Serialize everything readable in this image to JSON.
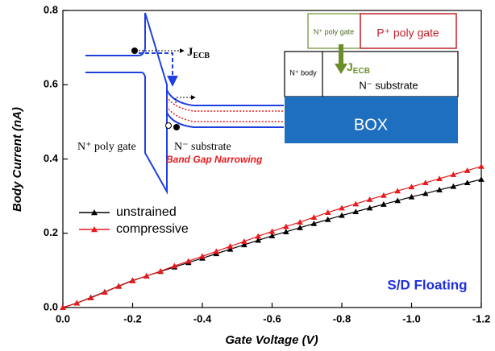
{
  "chart_data": {
    "type": "line",
    "x_label": "Gate Voltage (V)",
    "y_label": "Body Current (nA)",
    "x": [
      0,
      -0.04,
      -0.08,
      -0.12,
      -0.16,
      -0.2,
      -0.24,
      -0.28,
      -0.32,
      -0.36,
      -0.4,
      -0.44,
      -0.48,
      -0.52,
      -0.56,
      -0.6,
      -0.64,
      -0.68,
      -0.72,
      -0.76,
      -0.8,
      -0.84,
      -0.88,
      -0.92,
      -0.96,
      -1.0,
      -1.04,
      -1.08,
      -1.12,
      -1.16,
      -1.2
    ],
    "series": [
      {
        "name": "unstrained",
        "color": "#000000",
        "values": [
          0,
          0.012,
          0.027,
          0.042,
          0.058,
          0.073,
          0.085,
          0.097,
          0.109,
          0.121,
          0.133,
          0.145,
          0.157,
          0.169,
          0.181,
          0.193,
          0.204,
          0.215,
          0.226,
          0.237,
          0.248,
          0.258,
          0.268,
          0.278,
          0.288,
          0.298,
          0.307,
          0.317,
          0.326,
          0.336,
          0.345
        ]
      },
      {
        "name": "compressive",
        "color": "#e8191c",
        "values": [
          0,
          0.012,
          0.026,
          0.041,
          0.057,
          0.072,
          0.085,
          0.098,
          0.112,
          0.125,
          0.138,
          0.151,
          0.165,
          0.178,
          0.192,
          0.205,
          0.218,
          0.23,
          0.243,
          0.256,
          0.268,
          0.279,
          0.291,
          0.302,
          0.314,
          0.325,
          0.336,
          0.347,
          0.358,
          0.369,
          0.38
        ]
      }
    ],
    "xlim": [
      0,
      -1.2
    ],
    "ylim": [
      0,
      0.8
    ],
    "xticks": [
      {
        "value": 0,
        "label": "0.0"
      },
      -0.2,
      -0.4,
      -0.6,
      -0.8,
      {
        "value": -1,
        "label": "-1.0"
      },
      -1.2
    ],
    "yticks": [
      {
        "value": 0,
        "label": "0.0"
      },
      0.2,
      0.4,
      0.6,
      0.8
    ],
    "legend": "center left",
    "annotation": "S/D Floating"
  },
  "band_diagram": {
    "gate": "N⁺ poly gate",
    "substrate": "N⁻ substrate",
    "narrowing": "Band Gap Narrowing",
    "current": {
      "main": "J",
      "sub": "ECB"
    }
  },
  "device_diagram": {
    "n_gate": "N⁺ poly gate",
    "p_gate": "P⁺ poly gate",
    "body": "N⁺ body",
    "substrate": "N⁻ substrate",
    "box": "BOX",
    "current": {
      "main": "J",
      "sub": "ECB"
    }
  }
}
